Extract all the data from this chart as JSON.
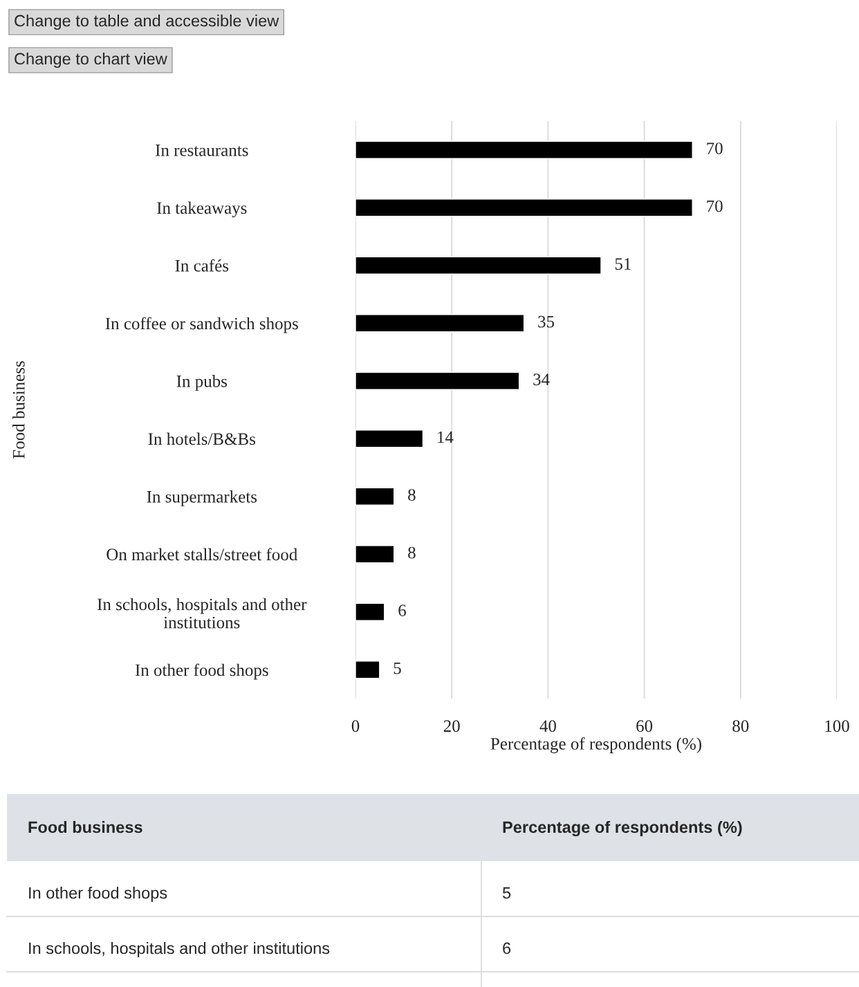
{
  "chart_data": {
    "type": "bar",
    "orientation": "horizontal",
    "categories": [
      "In restaurants",
      "In takeaways",
      "In cafés",
      "In coffee or sandwich shops",
      "In pubs",
      "In hotels/B&Bs",
      "In supermarkets",
      "On market stalls/street food",
      "In schools, hospitals and other\ninstitutions",
      "In other food shops"
    ],
    "values": [
      70,
      70,
      51,
      35,
      34,
      14,
      8,
      8,
      6,
      5
    ],
    "color": "#000000",
    "xlim": [
      0,
      100
    ],
    "xticks": [
      0,
      20,
      40,
      60,
      80,
      100
    ],
    "xlabel": "Percentage of respondents (%)",
    "ylabel": "Food business",
    "grid": "x",
    "data_labels": true,
    "annotations": [
      "Change to table and accessible view",
      "Change to chart view",
      "Food business",
      "Percentage of respondents (%)",
      "In other food shops",
      "5",
      "In schools, hospitals and other institutions",
      "6"
    ]
  }
}
